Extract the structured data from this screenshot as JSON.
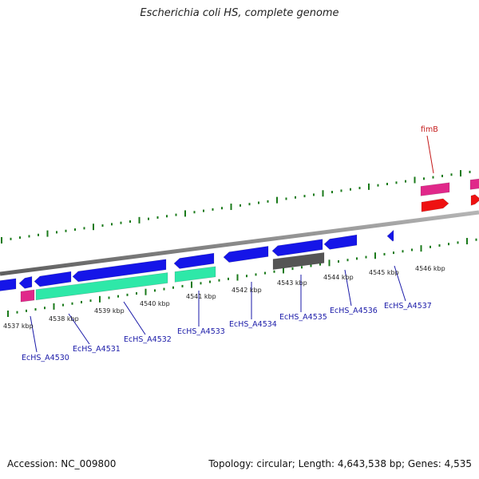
{
  "title": "Escherichia coli HS, complete genome",
  "footer": {
    "accession": "Accession: NC_009800",
    "summary": "Topology: circular; Length: 4,643,538 bp; Genes: 4,535"
  },
  "colors": {
    "cds": "#1515e8",
    "rna": "#2ee8a8",
    "pseudo": "#555555",
    "magenta": "#e0288a",
    "red": "#ee1111",
    "axis": "#808080",
    "tick": "#1a7a1a",
    "label": "#1a1aa8",
    "label_red": "#c41a1a"
  },
  "scale": {
    "ticks": [
      {
        "label": "4537 kbp"
      },
      {
        "label": "4538 kbp"
      },
      {
        "label": "4539 kbp"
      },
      {
        "label": "4540 kbp"
      },
      {
        "label": "4541 kbp"
      },
      {
        "label": "4542 kbp"
      },
      {
        "label": "4543 kbp"
      },
      {
        "label": "4544 kbp"
      },
      {
        "label": "4545 kbp"
      },
      {
        "label": "4546 kbp"
      }
    ]
  },
  "gene_labels": [
    {
      "text": "EcHS_A4530"
    },
    {
      "text": "EcHS_A4531"
    },
    {
      "text": "EcHS_A4532"
    },
    {
      "text": "EcHS_A4533"
    },
    {
      "text": "EcHS_A4534"
    },
    {
      "text": "EcHS_A4535"
    },
    {
      "text": "EcHS_A4536"
    },
    {
      "text": "EcHS_A4537"
    },
    {
      "text": "fimB"
    }
  ]
}
